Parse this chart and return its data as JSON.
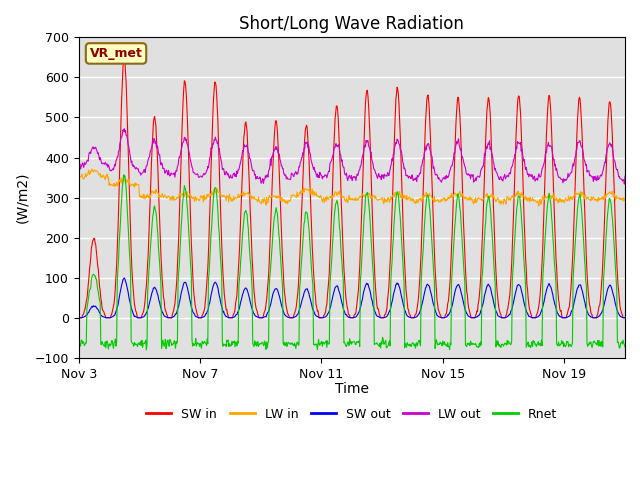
{
  "title": "Short/Long Wave Radiation",
  "ylabel": "(W/m2)",
  "xlabel": "Time",
  "ylim": [
    -100,
    700
  ],
  "yticks": [
    -100,
    0,
    100,
    200,
    300,
    400,
    500,
    600,
    700
  ],
  "xtick_labels": [
    "Nov 3",
    "Nov 7",
    "Nov 11",
    "Nov 15",
    "Nov 19"
  ],
  "legend_labels": [
    "SW in",
    "LW in",
    "SW out",
    "LW out",
    "Rnet"
  ],
  "legend_colors": [
    "#ff0000",
    "#ffa500",
    "#0000ff",
    "#cc00cc",
    "#00cc00"
  ],
  "station_label": "VR_met",
  "bg_color": "#e0e0e0",
  "title_fontsize": 12,
  "label_fontsize": 10,
  "tick_fontsize": 9,
  "legend_fontsize": 9,
  "sw_peaks": [
    200,
    650,
    500,
    590,
    590,
    490,
    490,
    480,
    530,
    570,
    575,
    555,
    550,
    550,
    555,
    555,
    550,
    540
  ],
  "lw_in_base": [
    350,
    330,
    300,
    295,
    300,
    295,
    290,
    305,
    295,
    295,
    295,
    290,
    295,
    290,
    295,
    290,
    295,
    295
  ],
  "lw_out_base": [
    380,
    370,
    360,
    355,
    355,
    350,
    345,
    355,
    350,
    350,
    350,
    345,
    350,
    345,
    350,
    345,
    350,
    345
  ],
  "n_days": 18,
  "n_per_day": 48
}
